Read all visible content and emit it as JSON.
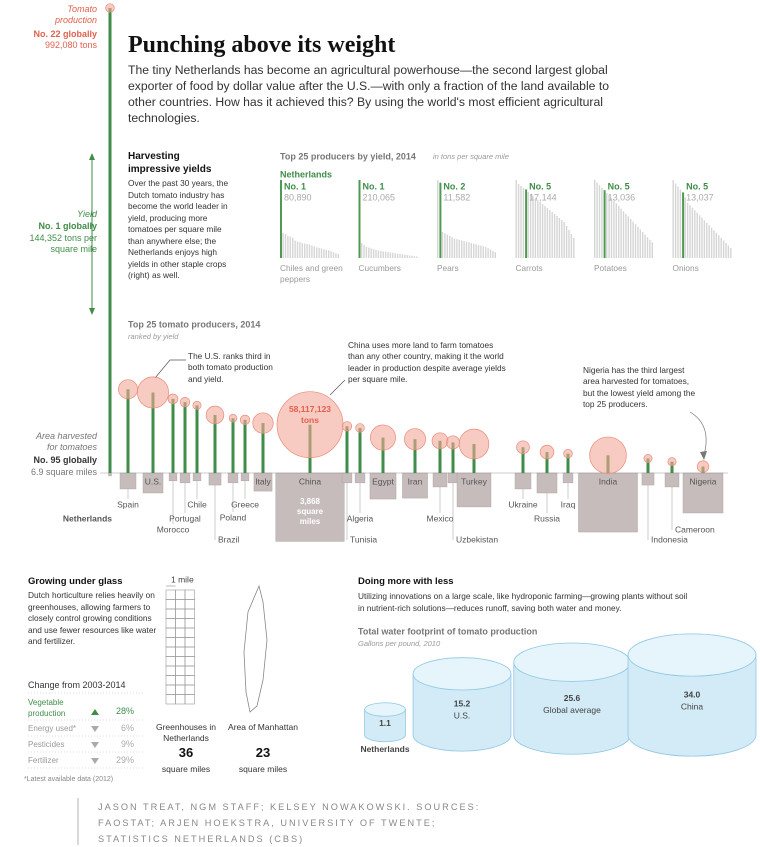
{
  "header": {
    "title": "Punching above its weight",
    "subtitle": "The tiny Netherlands has become an agricultural powerhouse—the second largest global exporter of food by dollar value after the U.S.—with only a fraction of the land available to other countries. How has it achieved this? By using the world's most efficient agricultural technologies."
  },
  "harvesting": {
    "title": "Harvesting impressive yields",
    "body": "Over the past 30 years, the Dutch tomato industry has become the world leader in yield, producing more tomatoes per square mile than anywhere else; the Netherlands enjoys high yields in other staple crops (right) as well."
  },
  "chart_data": [
    {
      "type": "small-multiples",
      "title": "Top 25 producers by yield, 2014",
      "unit_note": "in tons per square mile",
      "highlight_label": "Netherlands",
      "color": "#d6d6d6",
      "highlight_color": "#4f9a52",
      "panels": [
        {
          "name": "Chiles and green peppers",
          "rank": "No. 1",
          "value_label": "80,890",
          "highlight": 0,
          "values": [
            80890,
            26000,
            25000,
            23000,
            22000,
            21000,
            18000,
            17000,
            16500,
            15500,
            15000,
            14500,
            14000,
            13000,
            12000,
            11000,
            10500,
            10000,
            9000,
            8500,
            8000,
            7000,
            6000,
            5000,
            4000
          ]
        },
        {
          "name": "Cucumbers",
          "rank": "No. 1",
          "value_label": "210,065",
          "highlight": 0,
          "values": [
            210065,
            40000,
            35000,
            30000,
            28000,
            26000,
            24000,
            22000,
            20000,
            19000,
            18000,
            17000,
            16000,
            15000,
            14000,
            13000,
            12000,
            11000,
            10000,
            9000,
            8000,
            7000,
            6000,
            5000,
            4000
          ]
        },
        {
          "name": "Pears",
          "rank": "No. 2",
          "value_label": "11,582",
          "highlight": 1,
          "values": [
            12000,
            11582,
            4000,
            3800,
            3600,
            3400,
            3200,
            3000,
            2900,
            2800,
            2700,
            2600,
            2500,
            2400,
            2300,
            2200,
            2100,
            2000,
            1900,
            1800,
            1700,
            1500,
            1300,
            1100,
            900
          ]
        },
        {
          "name": "Carrots",
          "rank": "No. 5",
          "value_label": "17,144",
          "highlight": 4,
          "values": [
            19500,
            18500,
            18000,
            17500,
            17144,
            16500,
            16000,
            15500,
            15000,
            14500,
            14000,
            13500,
            13000,
            12500,
            12000,
            11500,
            11000,
            10500,
            10000,
            9500,
            9000,
            8000,
            7000,
            6000,
            5000
          ]
        },
        {
          "name": "Potatoes",
          "rank": "No. 5",
          "value_label": "13,036",
          "highlight": 4,
          "values": [
            15000,
            14500,
            14000,
            13500,
            13036,
            12500,
            12000,
            11500,
            11000,
            10500,
            10000,
            9500,
            9000,
            8500,
            8000,
            7500,
            7000,
            6500,
            6000,
            5500,
            5000,
            4500,
            4000,
            3500,
            3000
          ]
        },
        {
          "name": "Onions",
          "rank": "No. 5",
          "value_label": "13,037",
          "highlight": 4,
          "values": [
            15500,
            14800,
            14200,
            13600,
            13037,
            12000,
            11000,
            10500,
            10000,
            9500,
            9000,
            8500,
            8000,
            7500,
            7000,
            6500,
            6000,
            5500,
            5000,
            4500,
            4000,
            3500,
            3000,
            2500,
            2000
          ]
        }
      ]
    },
    {
      "type": "lollipop-bubble",
      "title": "Top 25 tomato producers, 2014",
      "subtitle": "ranked by yield",
      "stick_color": "#3f8d48",
      "bubble_color": "#f4a99a",
      "area_color": "#c7bcbc",
      "categories": [
        "Netherlands",
        "Spain",
        "U.S.",
        "Morocco",
        "Portugal",
        "Chile",
        "Brazil",
        "Poland",
        "Greece",
        "Italy",
        "China",
        "Tunisia",
        "Algeria",
        "Egypt",
        "Iran",
        "Mexico",
        "Uzbekistan",
        "Turkey",
        "Ukraine",
        "Russia",
        "Iraq",
        "India",
        "Indonesia",
        "Cameroon",
        "Nigeria"
      ],
      "yield": [
        144352,
        26000,
        25000,
        23000,
        22000,
        21000,
        18000,
        17000,
        16500,
        15500,
        15000,
        14500,
        14000,
        11000,
        10500,
        10000,
        9500,
        9000,
        8000,
        6500,
        6000,
        5500,
        4500,
        3500,
        2000
      ],
      "production": [
        992080,
        4900000,
        13000000,
        1300000,
        1200000,
        900000,
        4200000,
        800000,
        1200000,
        5600000,
        58117123,
        1200000,
        1000000,
        8500000,
        6000000,
        3400000,
        2300000,
        11800000,
        2200000,
        2500000,
        1000000,
        18000000,
        900000,
        900000,
        1800000
      ],
      "area": [
        6.9,
        210,
        330,
        50,
        80,
        50,
        120,
        80,
        50,
        270,
        3868,
        80,
        80,
        560,
        520,
        160,
        80,
        950,
        210,
        330,
        80,
        2880,
        120,
        160,
        1320
      ],
      "production_note": {
        "label": "Tomato production",
        "rank": "No. 22 globally",
        "value_label": "992,080 tons"
      },
      "yield_note": {
        "label": "Yield",
        "rank": "No. 1 globally",
        "value_label": "144,352 tons per square mile"
      },
      "area_note": {
        "label": "Area harvested for tomatoes",
        "rank": "No. 95 globally",
        "value_label": "6.9 square miles"
      },
      "china_production_label": "58,117,123 tons",
      "china_area_label": "3,868 square miles",
      "annotations": [
        "The U.S. ranks third in both tomato production and yield.",
        "China uses more land to farm tomatoes than any other country, making it the world leader in production despite average yields per square mile.",
        "Nigeria has the third largest area harvested for tomatoes, but the lowest yield among the top 25 producers."
      ]
    },
    {
      "type": "cylinder",
      "title": "Total water footprint of tomato production",
      "subtitle": "Gallons per pound, 2010",
      "color": "#d3ebf7",
      "top_color": "#e6f4fb",
      "stroke_color": "#8fc8e3",
      "categories": [
        "Netherlands",
        "U.S.",
        "Global average",
        "China"
      ],
      "values": [
        1.1,
        15.2,
        25.6,
        34.0
      ],
      "value_labels": [
        "1.1",
        "15.2",
        "25.6",
        "34.0"
      ]
    }
  ],
  "glass": {
    "title": "Growing under glass",
    "body": "Dutch horticulture relies heavily on greenhouses, allowing farmers to closely control growing conditions and use fewer resources like water and fertilizer.",
    "change_title": "Change from 2003-2014",
    "rows": [
      {
        "label": "Vegetable production",
        "change": "28%",
        "direction": "up"
      },
      {
        "label": "Energy used*",
        "change": "6%",
        "direction": "down"
      },
      {
        "label": "Pesticides",
        "change": "9%",
        "direction": "down"
      },
      {
        "label": "Fertilizer",
        "change": "29%",
        "direction": "down"
      }
    ],
    "footnote": "*Latest available data (2012)",
    "scale_label": "1 mile",
    "greenhouses": {
      "label": "Greenhouses in Netherlands",
      "value": 36,
      "unit": "square miles"
    },
    "manhattan": {
      "label": "Area of Manhattan",
      "value": 23,
      "unit": "square miles"
    }
  },
  "water_section": {
    "title": "Doing more with less",
    "body": "Utilizing innovations on a large scale, like hydroponic farming—growing plants without soil in nutrient-rich solutions—reduces runoff, saving both water and money."
  },
  "credits": "JASON TREAT, NGM STAFF; KELSEY NOWAKOWSKI. SOURCES: FAOSTAT; ARJEN HOEKSTRA, UNIVERSITY OF TWENTE; STATISTICS NETHERLANDS (CBS)"
}
